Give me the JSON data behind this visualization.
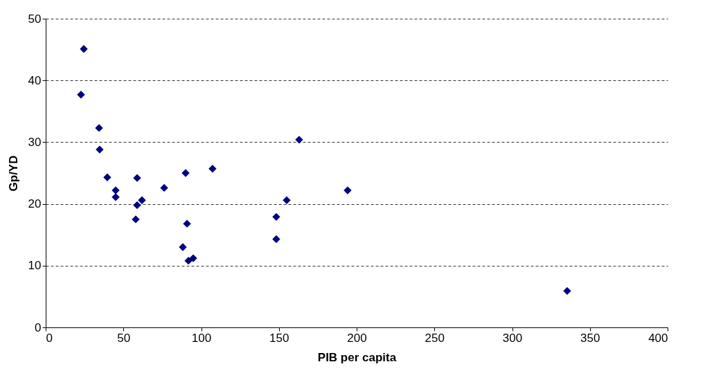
{
  "chart_data": {
    "type": "scatter",
    "xlabel": "PIB per capita",
    "ylabel": "Gp/YD",
    "xlim": [
      0,
      400
    ],
    "xticks": [
      0,
      50,
      100,
      150,
      200,
      250,
      300,
      350,
      400
    ],
    "ylim": [
      0,
      50
    ],
    "yticks": [
      0,
      10,
      20,
      30,
      40,
      50
    ],
    "grid": "y",
    "marker": "diamond",
    "series": [
      {
        "color": "#000080",
        "x": [
          24.5,
          22.7,
          34.3,
          34.7,
          39.6,
          45.0,
          45.0,
          58.8,
          58.8,
          57.9,
          61.9,
          76.2,
          90.0,
          90.9,
          88.2,
          91.8,
          94.9,
          107.3,
          148.3,
          148.3,
          155.0,
          163.0,
          194.2,
          335.4
        ],
        "values": [
          45.1,
          37.7,
          32.3,
          28.8,
          24.3,
          22.2,
          21.1,
          24.2,
          19.8,
          17.5,
          20.6,
          22.6,
          25.0,
          16.8,
          13.0,
          10.8,
          11.2,
          25.7,
          17.9,
          14.3,
          20.6,
          30.4,
          22.2,
          5.9
        ]
      }
    ]
  }
}
